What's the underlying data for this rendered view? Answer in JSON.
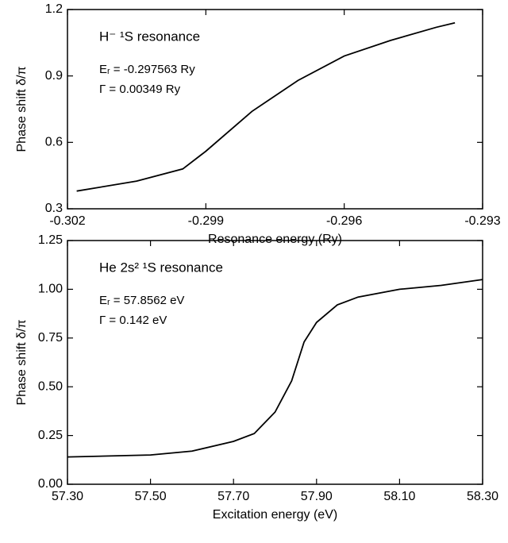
{
  "chart_data": [
    {
      "type": "line",
      "x_label": "Resonance energy (Ry)",
      "y_label": "Phase shift  δ/π",
      "annotations": [
        "H⁻ ¹S resonance",
        "Eᵣ =  -0.297563 Ry",
        "Γ = 0.00349 Ry"
      ],
      "xlim": [
        -0.302,
        -0.293
      ],
      "xticks": [
        -0.302,
        -0.299,
        -0.296,
        -0.293
      ],
      "ylim": [
        0.3,
        1.2
      ],
      "yticks": [
        0.3,
        0.6,
        0.9,
        1.2
      ],
      "series": [
        {
          "color": "#000000",
          "x": [
            -0.3018,
            -0.3005,
            -0.2995,
            -0.299,
            -0.298,
            -0.297,
            -0.296,
            -0.295,
            -0.294,
            -0.2936
          ],
          "values": [
            0.38,
            0.425,
            0.48,
            0.56,
            0.74,
            0.88,
            0.99,
            1.06,
            1.12,
            1.14
          ]
        }
      ]
    },
    {
      "type": "line",
      "x_label": "Excitation energy (eV)",
      "y_label": "Phase shift  δ/π",
      "annotations": [
        "He 2s² ¹S resonance",
        "Eᵣ = 57.8562 eV",
        "Γ = 0.142 eV"
      ],
      "xlim": [
        57.3,
        58.3
      ],
      "xticks": [
        {
          "value": 57.3,
          "label": "57.30"
        },
        {
          "value": 57.5,
          "label": "57.50"
        },
        {
          "value": 57.7,
          "label": "57.70"
        },
        {
          "value": 57.9,
          "label": "57.90"
        },
        {
          "value": 58.1,
          "label": "58.10"
        },
        {
          "value": 58.3,
          "label": "58.30"
        }
      ],
      "ylim": [
        0,
        1.25
      ],
      "yticks": [
        {
          "value": 0,
          "label": "0.00"
        },
        {
          "value": 0.25,
          "label": "0.25"
        },
        {
          "value": 0.5,
          "label": "0.50"
        },
        {
          "value": 0.75,
          "label": "0.75"
        },
        {
          "value": 1,
          "label": "1.00"
        },
        {
          "value": 1.25,
          "label": "1.25"
        }
      ],
      "series": [
        {
          "color": "#000000",
          "x": [
            57.3,
            57.5,
            57.6,
            57.7,
            57.75,
            57.8,
            57.84,
            57.87,
            57.9,
            57.95,
            58.0,
            58.1,
            58.2,
            58.3
          ],
          "values": [
            0.14,
            0.15,
            0.17,
            0.22,
            0.26,
            0.37,
            0.53,
            0.73,
            0.83,
            0.92,
            0.96,
            1.0,
            1.02,
            1.05
          ]
        }
      ]
    }
  ]
}
